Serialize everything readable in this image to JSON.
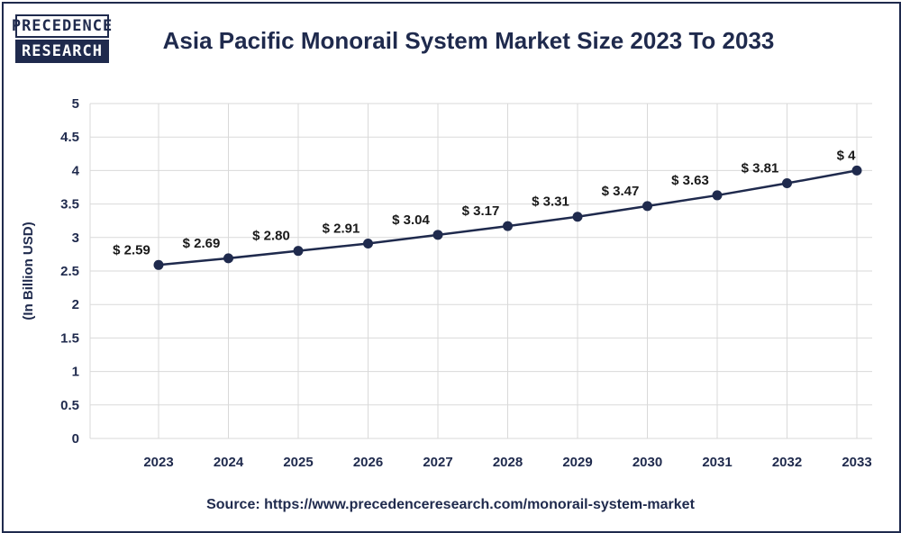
{
  "brand": {
    "line1": "PRECEDENCE",
    "line2": "RESEARCH"
  },
  "title": "Asia Pacific Monorail System Market Size 2023 To 2033",
  "source": "Source: https://www.precedenceresearch.com/monorail-system-market",
  "colors": {
    "primary": "#1f2a4d",
    "grid": "#d9d9d9"
  },
  "chart_data": {
    "type": "line",
    "title": "Asia Pacific Monorail System Market Size 2023 To 2033",
    "ylabel": "(In Billion USD)",
    "xlabel": "",
    "x": [
      "2023",
      "2024",
      "2025",
      "2026",
      "2027",
      "2028",
      "2029",
      "2030",
      "2031",
      "2032",
      "2033"
    ],
    "series": [
      {
        "values": [
          2.59,
          2.69,
          2.8,
          2.91,
          3.04,
          3.17,
          3.31,
          3.47,
          3.63,
          3.81,
          4
        ],
        "labels": [
          "$ 2.59",
          "$ 2.69",
          "$ 2.80",
          "$ 2.91",
          "$ 3.04",
          "$ 3.17",
          "$ 3.31",
          "$ 3.47",
          "$ 3.63",
          "$ 3.81",
          "$ 4"
        ]
      }
    ],
    "ylim": [
      0,
      5
    ],
    "yticks": [
      "0",
      "0.5",
      "1",
      "1.5",
      "2",
      "2.5",
      "3",
      "3.5",
      "4",
      "4.5",
      "5"
    ],
    "grid": true,
    "legend": "none"
  }
}
